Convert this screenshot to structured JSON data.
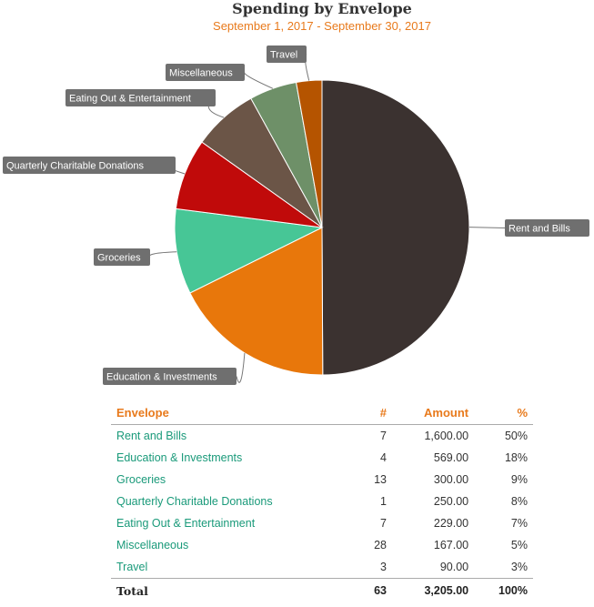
{
  "chart_data": {
    "type": "pie",
    "title": "Spending by Envelope",
    "subtitle": "September 1, 2017 - September 30, 2017",
    "slices": [
      {
        "label": "Rent and Bills",
        "value": 1600.0,
        "color": "#3b3230"
      },
      {
        "label": "Education & Investments",
        "value": 569.0,
        "color": "#e8770b"
      },
      {
        "label": "Groceries",
        "value": 300.0,
        "color": "#47c696"
      },
      {
        "label": "Quarterly Charitable Donations",
        "value": 250.0,
        "color": "#c00a0a"
      },
      {
        "label": "Eating Out & Entertainment",
        "value": 229.0,
        "color": "#6b5547"
      },
      {
        "label": "Miscellaneous",
        "value": 167.0,
        "color": "#6e9068"
      },
      {
        "label": "Travel",
        "value": 90.0,
        "color": "#b55400"
      }
    ]
  },
  "table": {
    "headers": {
      "envelope": "Envelope",
      "count": "#",
      "amount": "Amount",
      "percent": "%"
    },
    "rows": [
      {
        "envelope": "Rent and Bills",
        "count": "7",
        "amount": "1,600.00",
        "percent": "50%"
      },
      {
        "envelope": "Education & Investments",
        "count": "4",
        "amount": "569.00",
        "percent": "18%"
      },
      {
        "envelope": "Groceries",
        "count": "13",
        "amount": "300.00",
        "percent": "9%"
      },
      {
        "envelope": "Quarterly Charitable Donations",
        "count": "1",
        "amount": "250.00",
        "percent": "8%"
      },
      {
        "envelope": "Eating Out & Entertainment",
        "count": "7",
        "amount": "229.00",
        "percent": "7%"
      },
      {
        "envelope": "Miscellaneous",
        "count": "28",
        "amount": "167.00",
        "percent": "5%"
      },
      {
        "envelope": "Travel",
        "count": "3",
        "amount": "90.00",
        "percent": "3%"
      }
    ],
    "total": {
      "label": "Total",
      "count": "63",
      "amount": "3,205.00",
      "percent": "100%"
    }
  }
}
